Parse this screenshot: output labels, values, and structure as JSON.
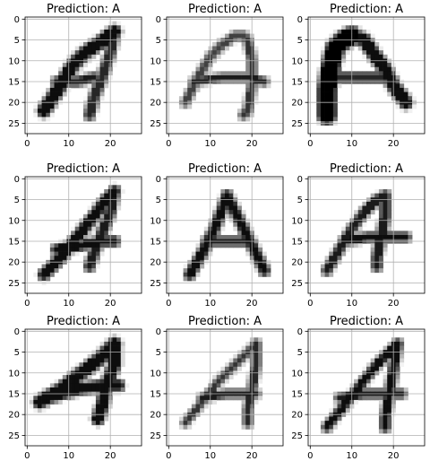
{
  "figure": {
    "panels": [
      {
        "title": "Prediction: A",
        "strokes": [
          {
            "w": 2.2,
            "shade": 0.95,
            "pts": [
              [
                4,
                22
              ],
              [
                8,
                16
              ],
              [
                11,
                11
              ],
              [
                14,
                8
              ],
              [
                17,
                6
              ],
              [
                21,
                3
              ]
            ]
          },
          {
            "w": 1.6,
            "shade": 0.85,
            "pts": [
              [
                21,
                3
              ],
              [
                20,
                8
              ],
              [
                18,
                14
              ],
              [
                16,
                19
              ],
              [
                15,
                23
              ]
            ]
          },
          {
            "w": 1.3,
            "shade": 0.9,
            "pts": [
              [
                7,
                15
              ],
              [
                12,
                15
              ],
              [
                16,
                14
              ]
            ]
          }
        ]
      },
      {
        "title": "Prediction: A",
        "strokes": [
          {
            "w": 1.2,
            "shade": 0.75,
            "pts": [
              [
                4,
                20
              ],
              [
                7,
                14
              ],
              [
                10,
                9
              ],
              [
                13,
                6
              ],
              [
                16,
                4
              ],
              [
                18,
                4
              ],
              [
                19,
                5
              ]
            ]
          },
          {
            "w": 1.2,
            "shade": 0.8,
            "pts": [
              [
                19,
                5
              ],
              [
                20,
                10
              ],
              [
                20,
                16
              ],
              [
                19,
                22
              ],
              [
                18,
                23
              ]
            ]
          },
          {
            "w": 1.0,
            "shade": 0.9,
            "pts": [
              [
                6,
                15
              ],
              [
                13,
                14
              ],
              [
                19,
                14
              ],
              [
                23,
                15
              ]
            ]
          }
        ]
      },
      {
        "title": "Prediction: A",
        "strokes": [
          {
            "w": 3.4,
            "shade": 1.0,
            "pts": [
              [
                4,
                23
              ],
              [
                4,
                17
              ],
              [
                5,
                11
              ],
              [
                6,
                7
              ],
              [
                8,
                5
              ],
              [
                10,
                4
              ]
            ]
          },
          {
            "w": 2.2,
            "shade": 0.95,
            "pts": [
              [
                10,
                4
              ],
              [
                13,
                5
              ],
              [
                15,
                8
              ],
              [
                18,
                12
              ],
              [
                20,
                16
              ],
              [
                23,
                20
              ]
            ]
          },
          {
            "w": 1.6,
            "shade": 0.85,
            "pts": [
              [
                5,
                14
              ],
              [
                11,
                14
              ],
              [
                17,
                14
              ]
            ]
          }
        ]
      },
      {
        "title": "Prediction: A",
        "strokes": [
          {
            "w": 1.8,
            "shade": 0.95,
            "pts": [
              [
                4,
                23
              ],
              [
                8,
                19
              ],
              [
                12,
                14
              ],
              [
                16,
                9
              ],
              [
                19,
                5
              ],
              [
                21,
                3
              ]
            ]
          },
          {
            "w": 1.6,
            "shade": 0.9,
            "pts": [
              [
                21,
                3
              ],
              [
                20,
                8
              ],
              [
                18,
                13
              ],
              [
                16,
                18
              ],
              [
                15,
                21
              ]
            ]
          },
          {
            "w": 1.5,
            "shade": 0.95,
            "pts": [
              [
                7,
                17
              ],
              [
                13,
                16
              ],
              [
                18,
                15
              ],
              [
                21,
                15
              ]
            ]
          }
        ]
      },
      {
        "title": "Prediction: A",
        "strokes": [
          {
            "w": 1.6,
            "shade": 0.95,
            "pts": [
              [
                5,
                23
              ],
              [
                8,
                18
              ],
              [
                11,
                12
              ],
              [
                13,
                7
              ],
              [
                14,
                4
              ]
            ]
          },
          {
            "w": 1.6,
            "shade": 0.95,
            "pts": [
              [
                14,
                4
              ],
              [
                17,
                10
              ],
              [
                20,
                16
              ],
              [
                23,
                22
              ]
            ]
          },
          {
            "w": 1.3,
            "shade": 0.9,
            "pts": [
              [
                9,
                15
              ],
              [
                14,
                15
              ],
              [
                19,
                15
              ]
            ]
          }
        ]
      },
      {
        "title": "Prediction: A",
        "strokes": [
          {
            "w": 1.4,
            "shade": 0.9,
            "pts": [
              [
                4,
                22
              ],
              [
                7,
                17
              ],
              [
                10,
                12
              ],
              [
                13,
                8
              ],
              [
                16,
                5
              ],
              [
                18,
                4
              ]
            ]
          },
          {
            "w": 1.5,
            "shade": 0.9,
            "pts": [
              [
                18,
                4
              ],
              [
                18,
                9
              ],
              [
                17,
                14
              ],
              [
                16,
                19
              ],
              [
                16,
                21
              ]
            ]
          },
          {
            "w": 1.3,
            "shade": 0.95,
            "pts": [
              [
                8,
                15
              ],
              [
                14,
                14
              ],
              [
                19,
                14
              ],
              [
                23,
                14
              ]
            ]
          }
        ]
      },
      {
        "title": "Prediction: A",
        "strokes": [
          {
            "w": 2.2,
            "shade": 0.95,
            "pts": [
              [
                3,
                17
              ],
              [
                8,
                14
              ],
              [
                13,
                10
              ],
              [
                17,
                7
              ],
              [
                21,
                3
              ]
            ]
          },
          {
            "w": 2.0,
            "shade": 0.95,
            "pts": [
              [
                21,
                3
              ],
              [
                21,
                8
              ],
              [
                19,
                13
              ],
              [
                18,
                18
              ],
              [
                17,
                21
              ]
            ]
          },
          {
            "w": 1.8,
            "shade": 0.95,
            "pts": [
              [
                5,
                16
              ],
              [
                12,
                14
              ],
              [
                18,
                13
              ],
              [
                22,
                13
              ]
            ]
          }
        ]
      },
      {
        "title": "Prediction: A",
        "strokes": [
          {
            "w": 1.0,
            "shade": 0.8,
            "pts": [
              [
                4,
                22
              ],
              [
                8,
                17
              ],
              [
                12,
                12
              ],
              [
                16,
                8
              ],
              [
                19,
                5
              ],
              [
                21,
                3
              ]
            ]
          },
          {
            "w": 1.2,
            "shade": 0.85,
            "pts": [
              [
                21,
                3
              ],
              [
                21,
                8
              ],
              [
                20,
                14
              ],
              [
                19,
                19
              ],
              [
                19,
                22
              ]
            ]
          },
          {
            "w": 1.0,
            "shade": 0.9,
            "pts": [
              [
                8,
                16
              ],
              [
                14,
                15
              ],
              [
                21,
                15
              ]
            ]
          }
        ]
      },
      {
        "title": "Prediction: A",
        "strokes": [
          {
            "w": 1.3,
            "shade": 0.95,
            "pts": [
              [
                4,
                23
              ],
              [
                8,
                18
              ],
              [
                12,
                13
              ],
              [
                16,
                8
              ],
              [
                19,
                5
              ],
              [
                21,
                3
              ]
            ]
          },
          {
            "w": 1.4,
            "shade": 0.95,
            "pts": [
              [
                21,
                3
              ],
              [
                20,
                9
              ],
              [
                19,
                15
              ],
              [
                18,
                21
              ],
              [
                18,
                23
              ]
            ]
          },
          {
            "w": 1.2,
            "shade": 0.9,
            "pts": [
              [
                7,
                16
              ],
              [
                13,
                15
              ],
              [
                19,
                15
              ],
              [
                22,
                15
              ]
            ]
          }
        ]
      }
    ],
    "xticks": [
      0,
      10,
      20
    ],
    "yticks": [
      0,
      5,
      10,
      15,
      20,
      25
    ],
    "image_size": 28
  }
}
